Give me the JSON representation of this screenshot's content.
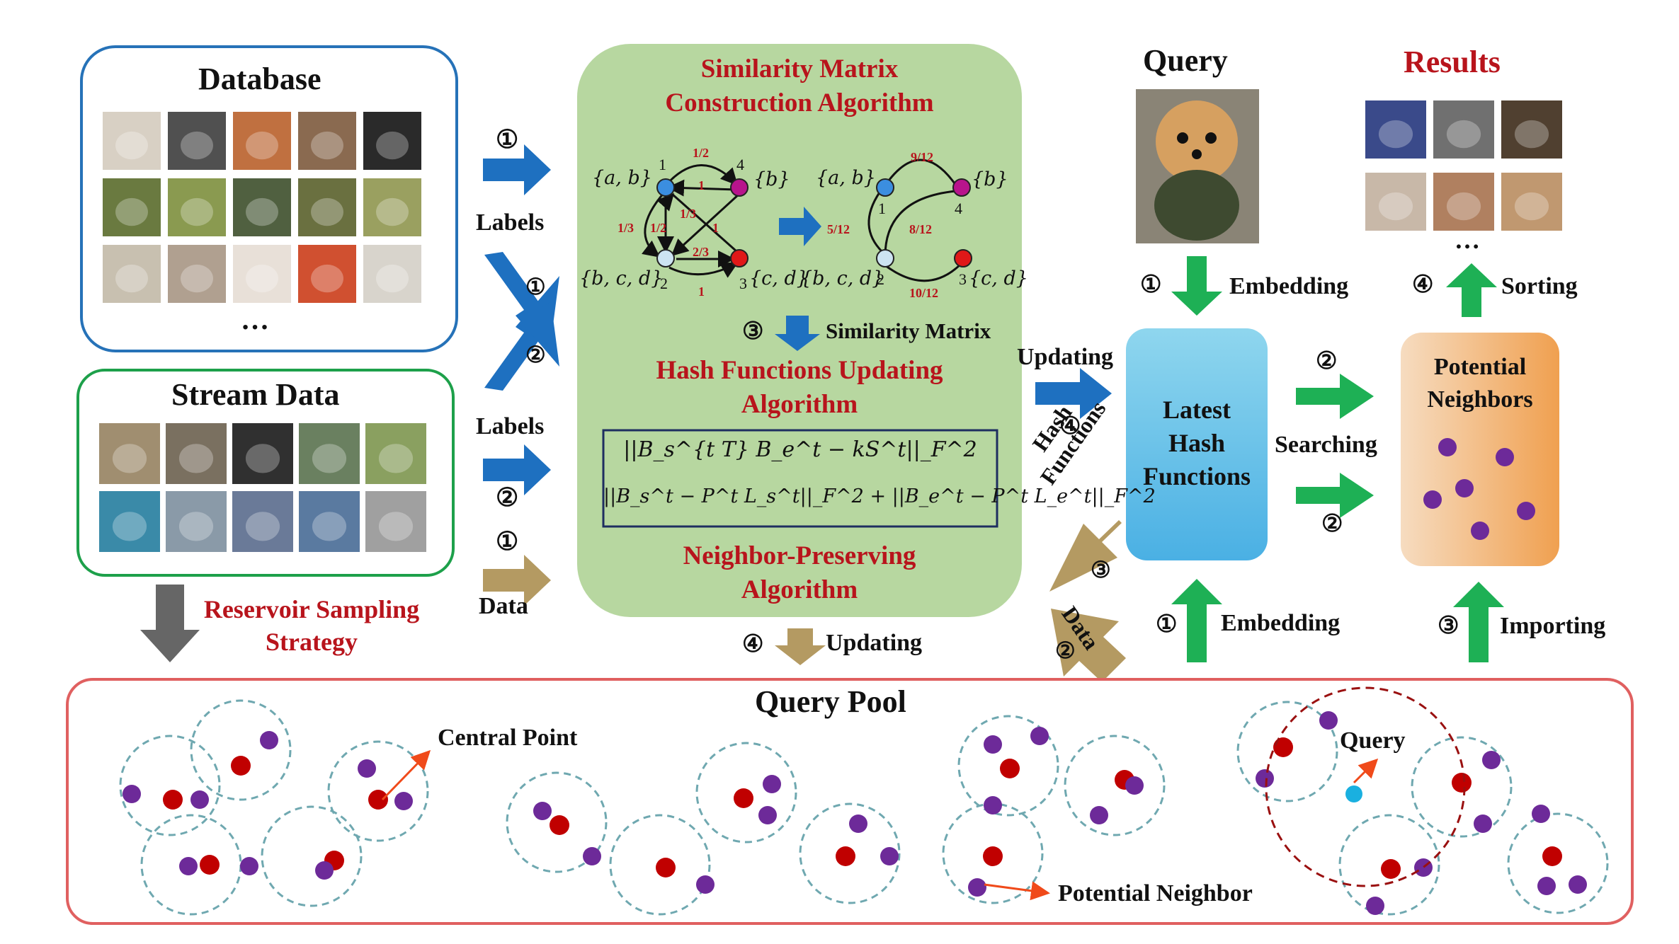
{
  "database": {
    "title": "Database",
    "ellipsis": "…"
  },
  "stream": {
    "title": "Stream Data"
  },
  "reservoir": {
    "line1": "Reservoir Sampling",
    "line2": "Strategy"
  },
  "left_arrows": {
    "labels_top": "Labels",
    "labels_bottom": "Labels",
    "data": "Data",
    "n1": "①",
    "n2": "②"
  },
  "green_panel": {
    "sim_title1": "Similarity Matrix",
    "sim_title2": "Construction  Algorithm",
    "similarity_matrix": "Similarity Matrix",
    "hash_title1": "Hash Functions Updating",
    "hash_title2": "Algorithm",
    "eq1": "||B_s^{t T} B_e^t − kS^t||_F^2",
    "eq2": "||B_s^t − P^t L_s^t||_F^2 + ||B_e^t − P^t L_e^t||_F^2",
    "np_title1": "Neighbor-Preserving",
    "np_title2": "Algorithm",
    "step3": "③",
    "step4": "④",
    "updating": "Updating"
  },
  "graph": {
    "left": {
      "node_labels": [
        "1",
        "2",
        "3",
        "4"
      ],
      "set_labels": [
        "{a, b}",
        "{b, c, d}",
        "{c, d}",
        "{b}"
      ],
      "edge_labels": [
        "1/2",
        "1",
        "1/3",
        "1/2",
        "1/3",
        "1",
        "2/3",
        "1"
      ],
      "colors": [
        "#3b8ee0",
        "#cde4f2",
        "#e01818",
        "#b8148c"
      ]
    },
    "right": {
      "node_labels": [
        "1",
        "2",
        "3",
        "4"
      ],
      "set_labels": [
        "{a, b}",
        "{b, c, d}",
        "{c, d}",
        "{b}"
      ],
      "edge_labels": [
        "9/12",
        "5/12",
        "8/12",
        "10/12"
      ]
    }
  },
  "center": {
    "updating": "Updating",
    "step4": "④",
    "hash_functions1": "Hash",
    "hash_functions2": "Functions",
    "step3": "③",
    "data": "Data",
    "step2": "②",
    "latest_hash": [
      "Latest",
      "Hash",
      "Functions"
    ]
  },
  "right": {
    "query_title": "Query",
    "results_title": "Results",
    "embedding_top": "Embedding",
    "embedding_bottom": "Embedding",
    "sorting": "Sorting",
    "searching": "Searching",
    "importing": "Importing",
    "potential_neighbors": [
      "Potential",
      "Neighbors"
    ],
    "ellipsis": "…",
    "n1": "①",
    "n2": "②",
    "n3": "③",
    "n4": "④"
  },
  "query_pool": {
    "title": "Query Pool",
    "central_point": "Central Point",
    "potential_neighbor": "Potential Neighbor",
    "query": "Query"
  },
  "colors": {
    "blue_arrow": "#1e70c0",
    "tan_arrow": "#b49a62",
    "green_arrow": "#1eb055",
    "gray_arrow": "#666666",
    "red_text": "#b8141c",
    "green_panel": "#b7d7a0",
    "purple_dot": "#6d2a99",
    "red_dot": "#c00000",
    "dashed_circle": "#6fa8b0",
    "query_dot": "#1ab0e0"
  }
}
